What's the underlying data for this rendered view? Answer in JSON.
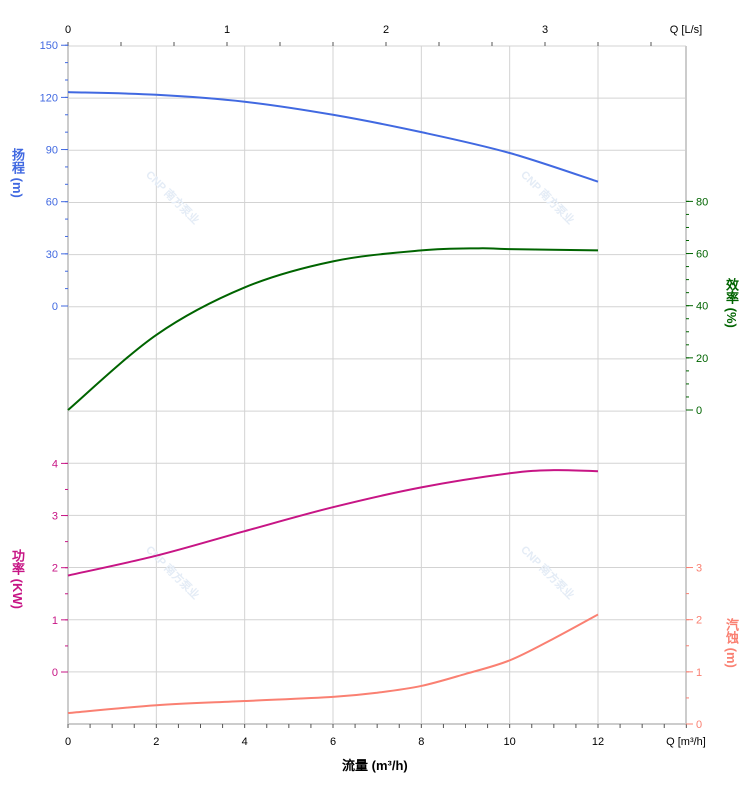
{
  "chart_data": {
    "type": "line",
    "xlabel": "流量 (m³/h)",
    "x_unit_label": "Q [m³/h]",
    "xlim": [
      0,
      14
    ],
    "x_ticks": [
      0,
      2,
      4,
      6,
      8,
      10,
      12
    ],
    "top_axis": {
      "label": "Q [L/s]",
      "ticks": [
        0,
        1,
        2,
        3
      ]
    },
    "grid": true,
    "watermark": "CNP 南方泵业",
    "axes": {
      "head": {
        "label": "扬程 (m)",
        "ticks": [
          0,
          30,
          60,
          90,
          120,
          150
        ],
        "color": "#4169e1",
        "side": "left"
      },
      "efficiency": {
        "label": "效率 (%)",
        "ticks": [
          0,
          20,
          40,
          60,
          80
        ],
        "color": "#006400",
        "side": "right"
      },
      "power": {
        "label": "功率 (KW)",
        "ticks": [
          0,
          1,
          2,
          3,
          4
        ],
        "color": "#c71585",
        "side": "left"
      },
      "npsh": {
        "label": "汽蚀 (m)",
        "ticks": [
          0,
          1,
          2,
          3
        ],
        "color": "#fa8072",
        "side": "right"
      }
    },
    "series": [
      {
        "axis": "head",
        "color": "#4169e1",
        "x": [
          0,
          2,
          4,
          6,
          8,
          10,
          12
        ],
        "y": [
          123,
          121.5,
          117.5,
          110,
          100,
          88,
          71.5
        ]
      },
      {
        "axis": "efficiency",
        "color": "#006400",
        "x": [
          0,
          2,
          4,
          6,
          8,
          9.3,
          10,
          12
        ],
        "y": [
          0,
          28.8,
          47,
          57,
          61.2,
          62,
          61.7,
          61.2
        ]
      },
      {
        "axis": "power",
        "color": "#c71585",
        "x": [
          0,
          2,
          4,
          6,
          8,
          10,
          11,
          12
        ],
        "y": [
          1.85,
          2.23,
          2.7,
          3.16,
          3.54,
          3.81,
          3.87,
          3.85
        ]
      },
      {
        "axis": "npsh",
        "color": "#fa8072",
        "x": [
          0,
          2,
          4,
          6,
          7,
          8,
          9,
          10,
          11,
          12
        ],
        "y": [
          0.21,
          0.36,
          0.44,
          0.52,
          0.6,
          0.73,
          0.96,
          1.22,
          1.64,
          2.1
        ]
      }
    ]
  }
}
